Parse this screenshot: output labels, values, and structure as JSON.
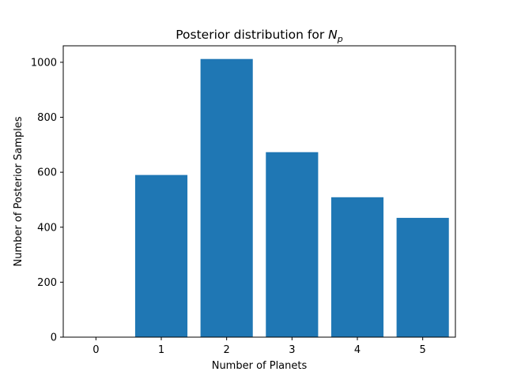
{
  "chart_data": {
    "type": "bar",
    "title_text": "Posterior distribution for ",
    "title_math_base": "N",
    "title_math_sub": "p",
    "xlabel": "Number of Planets",
    "ylabel": "Number of Posterior Samples",
    "categories": [
      "0",
      "1",
      "2",
      "3",
      "4",
      "5"
    ],
    "values": [
      0,
      590,
      1012,
      673,
      509,
      434
    ],
    "xlim": [
      -0.5,
      5.5
    ],
    "ylim": [
      0,
      1060
    ],
    "yticks": [
      0,
      200,
      400,
      600,
      800,
      1000
    ],
    "bar_color": "#1f77b4",
    "grid": false,
    "legend": null
  }
}
